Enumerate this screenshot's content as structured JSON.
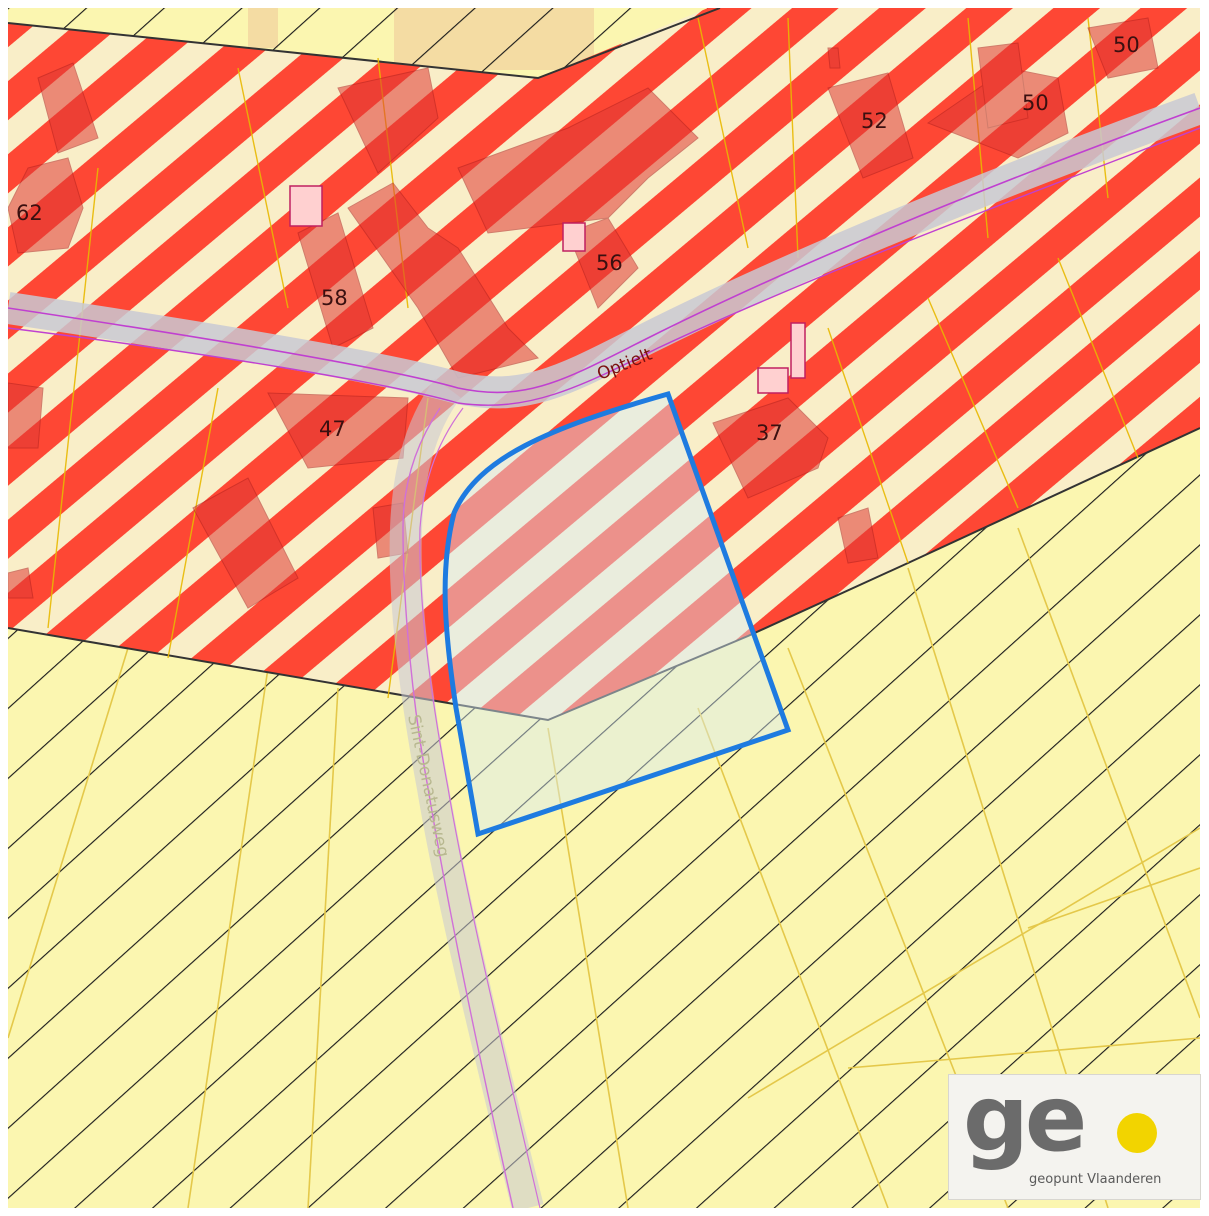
{
  "map": {
    "street_labels": {
      "optielt": "Optielt",
      "sint_donatusweg": "Sint-Donatusweg"
    },
    "house_numbers": {
      "n62": "62",
      "n58": "58",
      "n56": "56",
      "n52": "52",
      "n50a": "50",
      "n50b": "50",
      "n47": "47",
      "n37": "37"
    },
    "colors": {
      "background": "#fbf6b0",
      "zone_stripe_red": "#ff2a1a",
      "zone_stripe_light": "#f9eec8",
      "building_fill": "#e03a34",
      "diagonal_hatch": "#1a1a1a",
      "parcel_line": "#e4c84a",
      "road_fill": "#c9c9d4",
      "road_line": "#c040d0",
      "selection_outline": "#1e7be0"
    }
  },
  "logo": {
    "brand": "ge",
    "subtitle": "geopunt Vlaanderen"
  }
}
